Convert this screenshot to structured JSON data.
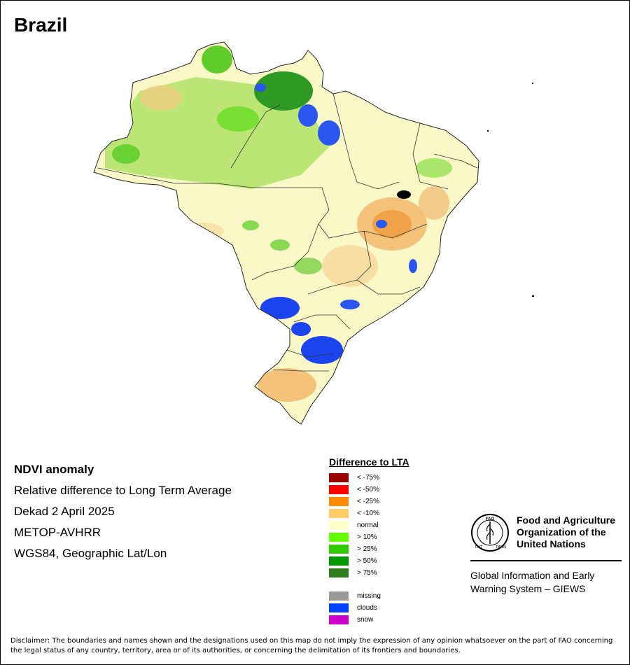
{
  "map": {
    "title": "Brazil"
  },
  "info": {
    "line1": "NDVI anomaly",
    "line2": "Relative difference to Long Term Average",
    "line3": "Dekad 2 April 2025",
    "line4": "METOP-AVHRR",
    "line5": "WGS84, Geographic Lat/Lon"
  },
  "legend": {
    "title": "Difference to LTA",
    "classes": [
      {
        "label": "< -75%",
        "color": "#9b0000"
      },
      {
        "label": "< -50%",
        "color": "#ff0000"
      },
      {
        "label": "< -25%",
        "color": "#ff8c00"
      },
      {
        "label": "< -10%",
        "color": "#ffcc66"
      },
      {
        "label": "normal",
        "color": "#ffffcc"
      },
      {
        "label": "> 10%",
        "color": "#66ff00"
      },
      {
        "label": "> 25%",
        "color": "#33cc00"
      },
      {
        "label": "> 50%",
        "color": "#009900"
      },
      {
        "label": "> 75%",
        "color": "#2e7d1f"
      }
    ],
    "extra": [
      {
        "label": "missing",
        "color": "#999999"
      },
      {
        "label": "clouds",
        "color": "#0040ff"
      },
      {
        "label": "snow",
        "color": "#cc00cc"
      }
    ]
  },
  "organization": {
    "name_line1": "Food and Agriculture",
    "name_line2": "Organization of the",
    "name_line3": "United Nations",
    "logo_text": "FAO",
    "logo_motto_left": "FIAT",
    "logo_motto_right": "PANIS",
    "system_line1": "Global Information and Early",
    "system_line2": "Warning System – GIEWS"
  },
  "disclaimer": "Disclaimer: The boundaries and names shown and the designations used on this map do not imply the expression of any opinion whatsoever on the part of FAO concerning the legal status of any country, territory, area or of its authorities, or concerning the delimitation of its frontiers and boundaries."
}
